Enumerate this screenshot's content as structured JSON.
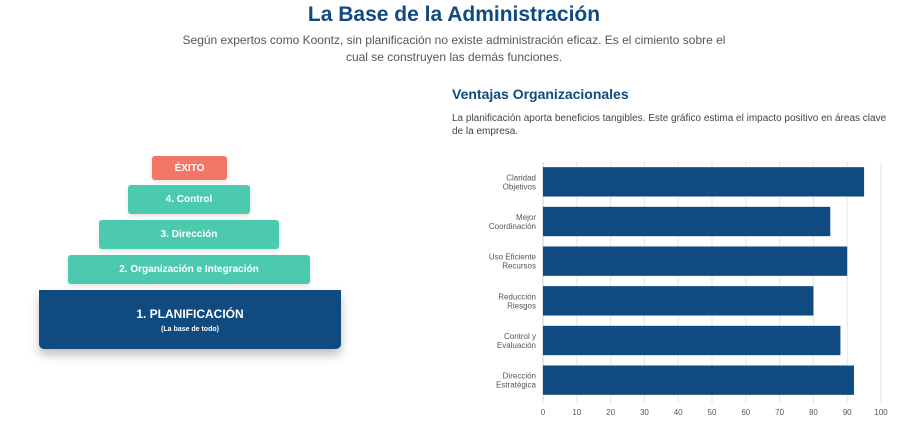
{
  "header": {
    "title": "La Base de la Administración",
    "subtitle": "Según expertos como Koontz, sin planificación no existe administración eficaz. Es el cimiento sobre el cual se construyen las demás funciones."
  },
  "pyramid": {
    "top": "ÉXITO",
    "level4": "4. Control",
    "level3": "3. Dirección",
    "level2": "2. Organización e Integración",
    "base_title": "1. PLANIFICACIÓN",
    "base_sub": "(La base de todo)"
  },
  "colors": {
    "navy": "#0f4a80",
    "teal": "#4ccab0",
    "coral": "#f37566"
  },
  "chart_section": {
    "title": "Ventajas Organizacionales",
    "description": "La planificación aporta beneficios tangibles. Este gráfico estima el impacto positivo en áreas clave de la empresa."
  },
  "chart_data": {
    "type": "bar",
    "orientation": "horizontal",
    "categories": [
      [
        "Claridad",
        "Objetivos"
      ],
      [
        "Mejor",
        "Coordinación"
      ],
      [
        "Uso Eficiente",
        "Recursos"
      ],
      [
        "Reducción",
        "Riesgos"
      ],
      [
        "Control y",
        "Evaluación"
      ],
      [
        "Dirección",
        "Estratégica"
      ]
    ],
    "values": [
      95,
      85,
      90,
      80,
      88,
      92
    ],
    "xlim": [
      0,
      100
    ],
    "xticks": [
      0,
      10,
      20,
      30,
      40,
      50,
      60,
      70,
      80,
      90,
      100
    ],
    "bar_color": "#0f4a80",
    "grid": true
  }
}
